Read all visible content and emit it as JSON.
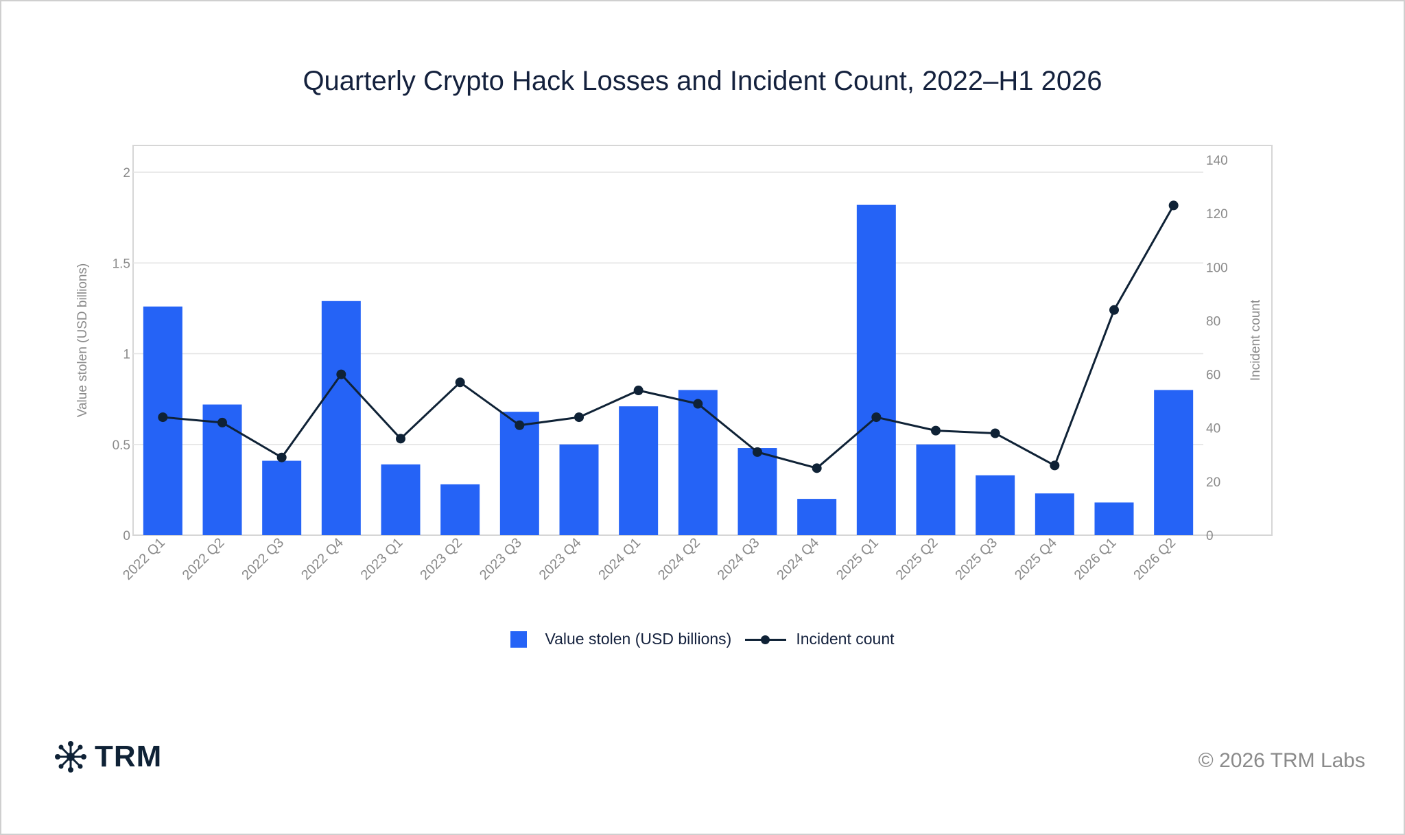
{
  "title": "Quarterly Crypto Hack Losses and Incident Count, 2022–H1 2026",
  "legend": {
    "bar_label": "Value stolen (USD billions)",
    "line_label": "Incident count"
  },
  "footer": {
    "logo_text": "TRM",
    "copyright": "© 2026 TRM Labs"
  },
  "colors": {
    "bar": "#2563f6",
    "line": "#0f2236",
    "grid": "#e3e3e3",
    "axis_text": "#8a8a8a"
  },
  "chart_data": {
    "type": "bar",
    "title": "Quarterly Crypto Hack Losses and Incident Count, 2022–H1 2026",
    "categories": [
      "2022 Q1",
      "2022 Q2",
      "2022 Q3",
      "2022 Q4",
      "2023 Q1",
      "2023 Q2",
      "2023 Q3",
      "2023 Q4",
      "2024 Q1",
      "2024 Q2",
      "2024 Q3",
      "2024 Q4",
      "2025 Q1",
      "2025 Q2",
      "2025 Q3",
      "2025 Q4",
      "2026 Q1",
      "2026 Q2"
    ],
    "series": [
      {
        "name": "Value stolen (USD billions)",
        "type": "bar",
        "axis": "left",
        "values": [
          1.26,
          0.72,
          0.41,
          1.29,
          0.39,
          0.28,
          0.68,
          0.5,
          0.71,
          0.8,
          0.48,
          0.2,
          1.82,
          0.5,
          0.33,
          0.23,
          0.18,
          0.8
        ]
      },
      {
        "name": "Incident count",
        "type": "line",
        "axis": "right",
        "values": [
          44,
          42,
          29,
          60,
          36,
          57,
          41,
          44,
          54,
          49,
          31,
          25,
          44,
          39,
          38,
          26,
          84,
          123
        ]
      }
    ],
    "ylabel": "Value stolen (USD billions)",
    "y2label": "Incident count",
    "ylim": [
      0,
      2.15
    ],
    "y2lim": [
      0,
      145
    ],
    "yticks": [
      "0",
      "0.5",
      "1",
      "1.5",
      "2"
    ],
    "y2ticks": [
      "0",
      "20",
      "40",
      "60",
      "80",
      "100",
      "120",
      "140"
    ],
    "grid": true,
    "legend_position": "bottom-center"
  }
}
